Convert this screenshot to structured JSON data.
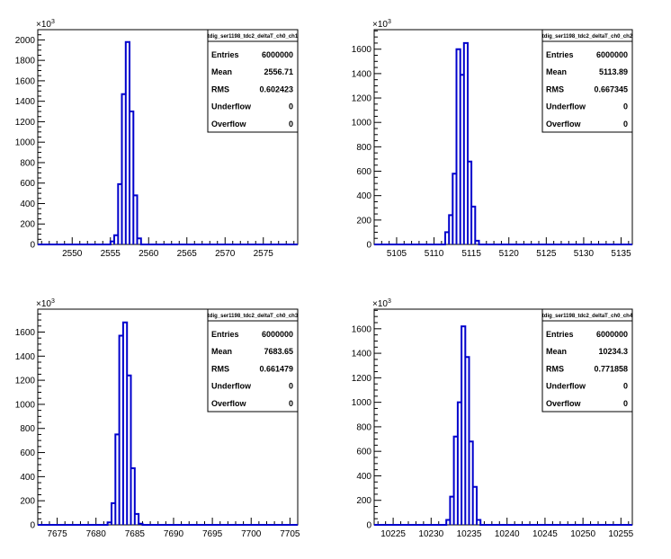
{
  "chart_data": [
    {
      "type": "histogram",
      "title": "",
      "stats_title": "tdig_ser1198_tdc2_deltaT_ch0_ch1",
      "stats": {
        "Entries": "6000000",
        "Mean": "2556.71",
        "RMS": "0.602423",
        "Underflow": "0",
        "Overflow": "0"
      },
      "y_multiplier": "3",
      "xlim": [
        2545.5,
        2579.5
      ],
      "ylim": [
        0,
        2100
      ],
      "x_ticks": [
        2550,
        2555,
        2560,
        2565,
        2570,
        2575
      ],
      "y_ticks": [
        0,
        200,
        400,
        600,
        800,
        1000,
        1200,
        1400,
        1600,
        1800,
        2000
      ],
      "bin_width": 0.5,
      "bins": [
        {
          "x": 2555.25,
          "y": 30
        },
        {
          "x": 2555.75,
          "y": 90
        },
        {
          "x": 2556.25,
          "y": 590
        },
        {
          "x": 2556.75,
          "y": 1470
        },
        {
          "x": 2557.25,
          "y": 1980
        },
        {
          "x": 2557.75,
          "y": 1300
        },
        {
          "x": 2558.25,
          "y": 480
        },
        {
          "x": 2558.75,
          "y": 60
        }
      ],
      "line_color": "#0000cc"
    },
    {
      "type": "histogram",
      "title": "",
      "stats_title": "tdig_ser1198_tdc2_deltaT_ch0_ch2",
      "stats": {
        "Entries": "6000000",
        "Mean": "5113.89",
        "RMS": "0.667345",
        "Underflow": "0",
        "Overflow": "0"
      },
      "y_multiplier": "3",
      "xlim": [
        5102,
        5136.5
      ],
      "ylim": [
        0,
        1760
      ],
      "x_ticks": [
        5105,
        5110,
        5115,
        5120,
        5125,
        5130,
        5135
      ],
      "y_ticks": [
        0,
        200,
        400,
        600,
        800,
        1000,
        1200,
        1400,
        1600
      ],
      "bin_width": 0.5,
      "bins": [
        {
          "x": 5111.75,
          "y": 100
        },
        {
          "x": 5112.25,
          "y": 240
        },
        {
          "x": 5112.75,
          "y": 580
        },
        {
          "x": 5113.25,
          "y": 1600
        },
        {
          "x": 5113.75,
          "y": 1390
        },
        {
          "x": 5114.25,
          "y": 1650
        },
        {
          "x": 5114.75,
          "y": 680
        },
        {
          "x": 5115.25,
          "y": 310
        },
        {
          "x": 5115.75,
          "y": 30
        }
      ],
      "line_color": "#0000cc"
    },
    {
      "type": "histogram",
      "title": "",
      "stats_title": "tdig_ser1198_tdc2_deltaT_ch0_ch3",
      "stats": {
        "Entries": "6000000",
        "Mean": "7683.65",
        "RMS": "0.661479",
        "Underflow": "0",
        "Overflow": "0"
      },
      "y_multiplier": "3",
      "xlim": [
        7672.5,
        7706
      ],
      "ylim": [
        0,
        1790
      ],
      "x_ticks": [
        7675,
        7680,
        7685,
        7690,
        7695,
        7700,
        7705
      ],
      "y_ticks": [
        0,
        200,
        400,
        600,
        800,
        1000,
        1200,
        1400,
        1600
      ],
      "bin_width": 0.5,
      "bins": [
        {
          "x": 7681.75,
          "y": 20
        },
        {
          "x": 7682.25,
          "y": 180
        },
        {
          "x": 7682.75,
          "y": 750
        },
        {
          "x": 7683.25,
          "y": 1570
        },
        {
          "x": 7683.75,
          "y": 1680
        },
        {
          "x": 7684.25,
          "y": 1240
        },
        {
          "x": 7684.75,
          "y": 470
        },
        {
          "x": 7685.25,
          "y": 90
        },
        {
          "x": 7685.75,
          "y": 10
        }
      ],
      "line_color": "#0000cc"
    },
    {
      "type": "histogram",
      "title": "",
      "stats_title": "tdig_ser1198_tdc2_deltaT_ch0_ch4",
      "stats": {
        "Entries": "6000000",
        "Mean": "10234.3",
        "RMS": "0.771858",
        "Underflow": "0",
        "Overflow": "0"
      },
      "y_multiplier": "3",
      "xlim": [
        10222.5,
        10256.5
      ],
      "ylim": [
        0,
        1760
      ],
      "x_ticks": [
        10225,
        10230,
        10235,
        10240,
        10245,
        10250,
        10255
      ],
      "y_ticks": [
        0,
        200,
        400,
        600,
        800,
        1000,
        1200,
        1400,
        1600
      ],
      "bin_width": 0.5,
      "bins": [
        {
          "x": 10232.25,
          "y": 40
        },
        {
          "x": 10232.75,
          "y": 230
        },
        {
          "x": 10233.25,
          "y": 720
        },
        {
          "x": 10233.75,
          "y": 1000
        },
        {
          "x": 10234.25,
          "y": 1620
        },
        {
          "x": 10234.75,
          "y": 1370
        },
        {
          "x": 10235.25,
          "y": 680
        },
        {
          "x": 10235.75,
          "y": 310
        },
        {
          "x": 10236.25,
          "y": 40
        }
      ],
      "line_color": "#0000cc"
    }
  ]
}
